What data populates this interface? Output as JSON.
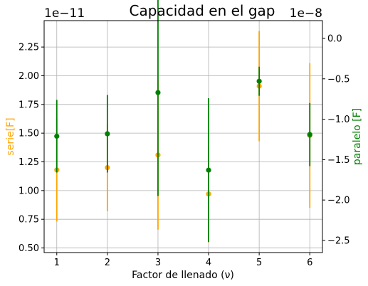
{
  "chart_data": {
    "type": "scatter",
    "title": "Capacidad en el gap",
    "xlabel": "Factor de llenado (ν)",
    "ylabel_left": "serie[F]",
    "ylabel_right": "paralelo [F]",
    "left_offset_text": "1e−11",
    "right_offset_text": "1e−8",
    "x_ticks": [
      "1",
      "2",
      "3",
      "4",
      "5",
      "6"
    ],
    "left_ticks": [
      "0.50",
      "0.75",
      "1.00",
      "1.25",
      "1.50",
      "1.75",
      "2.00",
      "2.25"
    ],
    "right_ticks": [
      "−2.5",
      "−2.0",
      "−1.5",
      "−1.0",
      "−0.5",
      "0.0"
    ],
    "xlim": [
      0.75,
      6.25
    ],
    "ylim_left": [
      0.46,
      2.48
    ],
    "ylim_right": [
      -2.65,
      0.22
    ],
    "grid": true,
    "series": [
      {
        "name": "serie[F]",
        "axis": "left",
        "color": "#ffa500",
        "x": [
          1,
          2,
          3,
          4,
          5,
          6
        ],
        "y": [
          1.18,
          1.2,
          1.31,
          0.97,
          1.91,
          1.48
        ],
        "err": [
          0.45,
          0.38,
          0.65,
          0.42,
          0.48,
          0.63
        ]
      },
      {
        "name": "paralelo [F]",
        "axis": "right",
        "color": "#008000",
        "x": [
          1,
          2,
          3,
          4,
          5,
          6
        ],
        "y": [
          -1.21,
          -1.18,
          -0.67,
          -1.63,
          -0.53,
          -1.19
        ],
        "err": [
          0.45,
          0.48,
          1.28,
          0.89,
          0.18,
          0.39
        ]
      }
    ]
  }
}
